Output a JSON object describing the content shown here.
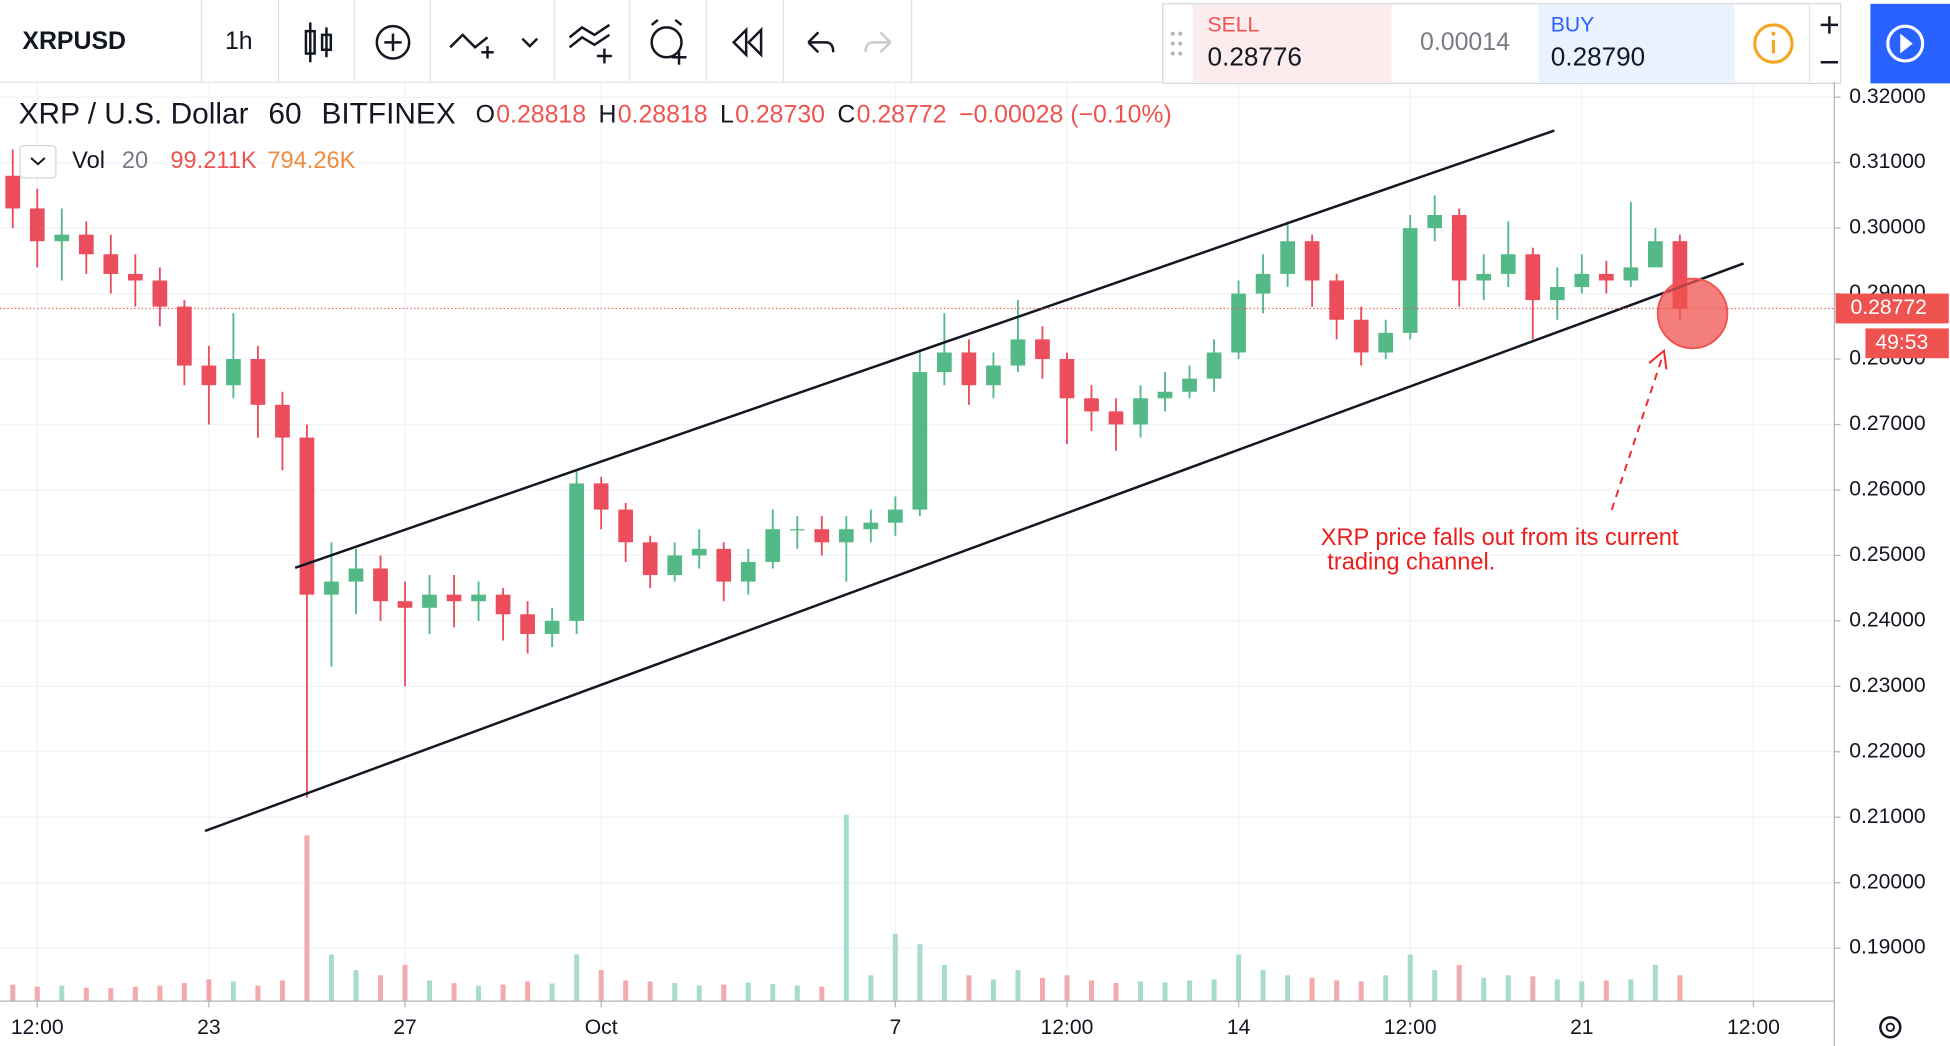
{
  "toolbar": {
    "symbol": "XRPUSD",
    "interval": "1h",
    "sell_label": "SELL",
    "sell_price": "0.28776",
    "spread": "0.00014",
    "buy_label": "BUY",
    "buy_price": "0.28790"
  },
  "chart_data": {
    "type": "candlestick",
    "title": "XRP / U.S. Dollar",
    "interval": "60",
    "exchange": "BITFINEX",
    "ohlc_legend": [
      {
        "key": "O",
        "value": "0.28818"
      },
      {
        "key": "H",
        "value": "0.28818"
      },
      {
        "key": "L",
        "value": "0.28730"
      },
      {
        "key": "C",
        "value": "0.28772"
      }
    ],
    "change": "−0.00028 (−0.10%)",
    "volume_legend": {
      "name": "Vol",
      "period": "20",
      "value": "99.211K",
      "ma": "794.26K"
    },
    "up_color": "#53b987",
    "down_color": "#eb4d5c",
    "volume_color": "#f4a9ad",
    "grid": true,
    "x": [
      19,
      19.5,
      20,
      20.5,
      21,
      21.5,
      22,
      22.5,
      23,
      23.5,
      24,
      24.5,
      25,
      25.5,
      26,
      26.5,
      27,
      27.5,
      28,
      28.5,
      29,
      29.5,
      30,
      30.5,
      31,
      31.5,
      32,
      32.5,
      33,
      33.5,
      34,
      34.5,
      35,
      35.5,
      36,
      36.5,
      37,
      37.5,
      38,
      38.5,
      39,
      39.5,
      40,
      40.5,
      41,
      41.5,
      42,
      42.5,
      43,
      43.5,
      44,
      44.5,
      45,
      45.5,
      46,
      46.5,
      47,
      47.5,
      48,
      48.5,
      49,
      49.5,
      50,
      50.5,
      51,
      51.5,
      52,
      52.5,
      53
    ],
    "open": [
      0.308,
      0.303,
      0.298,
      0.299,
      0.296,
      0.293,
      0.292,
      0.288,
      0.279,
      0.276,
      0.28,
      0.273,
      0.268,
      0.244,
      0.246,
      0.248,
      0.243,
      0.242,
      0.244,
      0.243,
      0.244,
      0.241,
      0.238,
      0.24,
      0.261,
      0.257,
      0.252,
      0.247,
      0.25,
      0.251,
      0.246,
      0.249,
      0.254,
      0.254,
      0.252,
      0.254,
      0.255,
      0.257,
      0.278,
      0.281,
      0.276,
      0.279,
      0.283,
      0.28,
      0.274,
      0.272,
      0.27,
      0.274,
      0.275,
      0.277,
      0.281,
      0.29,
      0.293,
      0.298,
      0.292,
      0.286,
      0.281,
      0.284,
      0.3,
      0.302,
      0.292,
      0.293,
      0.296,
      0.289,
      0.291,
      0.293,
      0.292,
      0.294,
      0.298
    ],
    "high": [
      0.312,
      0.306,
      0.303,
      0.301,
      0.299,
      0.296,
      0.294,
      0.289,
      0.282,
      0.287,
      0.282,
      0.275,
      0.27,
      0.252,
      0.251,
      0.25,
      0.246,
      0.247,
      0.247,
      0.246,
      0.245,
      0.243,
      0.242,
      0.263,
      0.262,
      0.258,
      0.253,
      0.252,
      0.254,
      0.252,
      0.251,
      0.257,
      0.256,
      0.256,
      0.256,
      0.257,
      0.259,
      0.281,
      0.287,
      0.283,
      0.281,
      0.289,
      0.285,
      0.281,
      0.276,
      0.274,
      0.276,
      0.278,
      0.279,
      0.283,
      0.292,
      0.296,
      0.301,
      0.299,
      0.293,
      0.288,
      0.286,
      0.302,
      0.305,
      0.303,
      0.296,
      0.301,
      0.297,
      0.294,
      0.296,
      0.295,
      0.304,
      0.3,
      0.299
    ],
    "low": [
      0.3,
      0.294,
      0.292,
      0.293,
      0.29,
      0.288,
      0.285,
      0.276,
      0.27,
      0.274,
      0.268,
      0.263,
      0.213,
      0.233,
      0.241,
      0.24,
      0.23,
      0.238,
      0.239,
      0.24,
      0.237,
      0.235,
      0.236,
      0.238,
      0.254,
      0.249,
      0.245,
      0.246,
      0.248,
      0.243,
      0.244,
      0.248,
      0.251,
      0.25,
      0.246,
      0.252,
      0.253,
      0.256,
      0.276,
      0.273,
      0.274,
      0.278,
      0.277,
      0.267,
      0.269,
      0.266,
      0.268,
      0.272,
      0.274,
      0.275,
      0.28,
      0.287,
      0.291,
      0.288,
      0.283,
      0.279,
      0.28,
      0.283,
      0.298,
      0.288,
      0.289,
      0.291,
      0.283,
      0.286,
      0.29,
      0.29,
      0.291,
      0.295,
      0.286
    ],
    "close": [
      0.303,
      0.298,
      0.299,
      0.296,
      0.293,
      0.292,
      0.288,
      0.279,
      0.276,
      0.28,
      0.273,
      0.268,
      0.244,
      0.246,
      0.248,
      0.243,
      0.242,
      0.244,
      0.243,
      0.244,
      0.241,
      0.238,
      0.24,
      0.261,
      0.257,
      0.252,
      0.247,
      0.25,
      0.251,
      0.246,
      0.249,
      0.254,
      0.254,
      0.252,
      0.254,
      0.255,
      0.257,
      0.278,
      0.281,
      0.276,
      0.279,
      0.283,
      0.28,
      0.274,
      0.272,
      0.27,
      0.274,
      0.275,
      0.277,
      0.281,
      0.29,
      0.293,
      0.298,
      0.292,
      0.286,
      0.281,
      0.284,
      0.3,
      0.302,
      0.292,
      0.293,
      0.296,
      0.289,
      0.291,
      0.293,
      0.292,
      0.294,
      0.298,
      0.2877
    ],
    "volume": [
      320,
      280,
      300,
      260,
      250,
      280,
      300,
      350,
      420,
      380,
      300,
      400,
      3200,
      900,
      600,
      500,
      700,
      400,
      350,
      300,
      320,
      380,
      340,
      900,
      600,
      400,
      380,
      350,
      300,
      320,
      360,
      330,
      300,
      280,
      3600,
      500,
      1300,
      1100,
      700,
      500,
      420,
      600,
      450,
      500,
      400,
      350,
      380,
      360,
      400,
      420,
      900,
      600,
      500,
      450,
      400,
      380,
      500,
      900,
      600,
      700,
      450,
      500,
      480,
      420,
      380,
      400,
      420,
      700,
      500
    ],
    "xlim": [
      18.74,
      56.15
    ],
    "ylim": [
      0.1819,
      0.3223
    ],
    "xticks": [
      {
        "value": 19.5,
        "label": "12:00"
      },
      23,
      27,
      {
        "value": 31,
        "label": "Oct"
      },
      {
        "value": 37,
        "label": "7"
      },
      {
        "value": 40.5,
        "label": "12:00"
      },
      {
        "value": 44,
        "label": "14"
      },
      {
        "value": 47.5,
        "label": "12:00"
      },
      {
        "value": 51,
        "label": "21"
      },
      {
        "value": 54.5,
        "label": "12:00"
      }
    ],
    "yticks": [
      {
        "value": 0.19,
        "label": "0.19000"
      },
      {
        "value": 0.2,
        "label": "0.20000"
      },
      {
        "value": 0.21,
        "label": "0.21000"
      },
      {
        "value": 0.22,
        "label": "0.22000"
      },
      {
        "value": 0.23,
        "label": "0.23000"
      },
      {
        "value": 0.24,
        "label": "0.24000"
      },
      {
        "value": 0.25,
        "label": "0.25000"
      },
      {
        "value": 0.26,
        "label": "0.26000"
      },
      {
        "value": 0.27,
        "label": "0.27000"
      },
      {
        "value": 0.28,
        "label": "0.28000"
      },
      {
        "value": 0.29,
        "label": "0.29000"
      },
      {
        "value": 0.3,
        "label": "0.30000"
      },
      {
        "value": 0.31,
        "label": "0.31000"
      },
      {
        "value": 0.32,
        "label": "0.32000"
      }
    ],
    "last_price": 0.28772,
    "countdown": "49:53",
    "trendlines": [
      {
        "points": [
          [
            24.76,
            0.2481
          ],
          [
            50.44,
            0.3149
          ]
        ]
      },
      {
        "points": [
          [
            22.92,
            0.2079
          ],
          [
            54.3,
            0.2946
          ]
        ]
      }
    ],
    "annotation": {
      "lines": [
        "XRP price falls out from its current",
        " trading channel."
      ]
    }
  }
}
